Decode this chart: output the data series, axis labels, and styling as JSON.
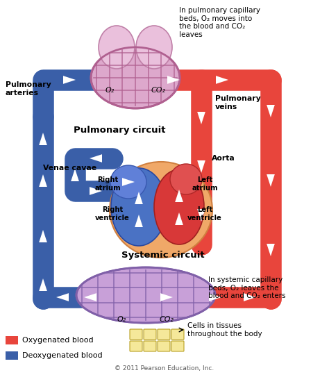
{
  "bg_color": "#ffffff",
  "red_color": "#E8453C",
  "blue_color": "#3A5FA8",
  "orange_color": "#F0A060",
  "pink_lung_color": "#DDA8CC",
  "pink_cap_color": "#C8A0D8",
  "cell_color": "#F5E89A",
  "labels": {
    "pulmonary_arteries": "Pulmonary\narteries",
    "pulmonary_veins": "Pulmonary\nveins",
    "pulmonary_circuit": "Pulmonary circuit",
    "aorta": "Aorta",
    "venae_cavae": "Venae cavae",
    "right_atrium": "Right\natrium",
    "right_ventricle": "Right\nventricle",
    "left_atrium": "Left\natrium",
    "left_ventricle": "Left\nventricle",
    "systemic_circuit": "Systemic circuit",
    "top_right_text": "In pulmonary capillary\nbeds, O₂ moves into\nthe blood and CO₂\nleaves",
    "bottom_right_text": "In systemic capillary\nbeds, O₂ leaves the\nblood and CO₂ enters",
    "cells_text": "Cells in tissues\nthroughout the body",
    "o2_top": "O₂",
    "co2_top": "CO₂",
    "o2_bottom": "O₂",
    "co2_bottom": "CO₂",
    "legend_oxy": "Oxygenated blood",
    "legend_deoxy": "Deoxygenated blood",
    "copyright": "© 2011 Pearson Education, Inc."
  },
  "figsize": [
    4.74,
    5.4
  ],
  "dpi": 100
}
